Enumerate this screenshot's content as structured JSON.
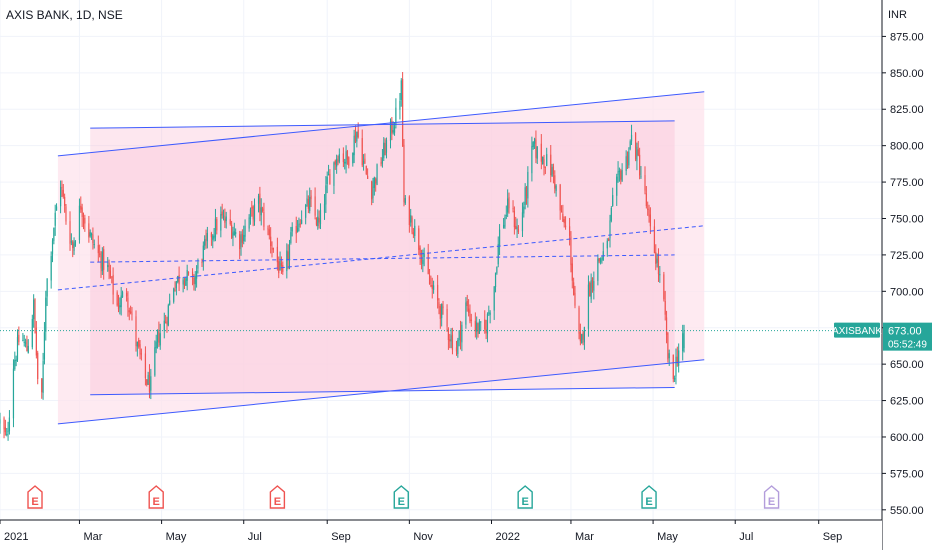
{
  "symbol_title": "AXIS BANK, 1D, NSE",
  "chart_data": {
    "type": "candlestick",
    "title": "AXIS BANK, 1D, NSE",
    "y_unit": "INR",
    "y_ticks": [
      "875.00",
      "850.00",
      "825.00",
      "800.00",
      "775.00",
      "750.00",
      "725.00",
      "700.00",
      "675.00",
      "650.00",
      "625.00",
      "600.00",
      "575.00",
      "550.00"
    ],
    "ylim": [
      543,
      900
    ],
    "x_ticks": [
      "2021",
      "Mar",
      "May",
      "Jul",
      "Sep",
      "Nov",
      "2022",
      "Mar",
      "May",
      "Jul",
      "Sep"
    ],
    "xlim": [
      "2021-01-01",
      "2022-10-18"
    ],
    "last_price_label": "AXISBANK",
    "last_price": "673.00",
    "countdown": "05:52:49",
    "price_path": [
      [
        "2021-01-01",
        610
      ],
      [
        "2021-01-06",
        598
      ],
      [
        "2021-01-11",
        650
      ],
      [
        "2021-01-16",
        670
      ],
      [
        "2021-01-21",
        660
      ],
      [
        "2021-01-26",
        690
      ],
      [
        "2021-01-29",
        640
      ],
      [
        "2021-02-01",
        625
      ],
      [
        "2021-02-04",
        700
      ],
      [
        "2021-02-10",
        745
      ],
      [
        "2021-02-15",
        775
      ],
      [
        "2021-02-19",
        750
      ],
      [
        "2021-02-24",
        730
      ],
      [
        "2021-03-02",
        760
      ],
      [
        "2021-03-08",
        740
      ],
      [
        "2021-03-15",
        725
      ],
      [
        "2021-03-22",
        715
      ],
      [
        "2021-03-29",
        690
      ],
      [
        "2021-04-05",
        700
      ],
      [
        "2021-04-12",
        665
      ],
      [
        "2021-04-19",
        640
      ],
      [
        "2021-04-23",
        635
      ],
      [
        "2021-04-28",
        668
      ],
      [
        "2021-05-04",
        680
      ],
      [
        "2021-05-10",
        705
      ],
      [
        "2021-05-17",
        712
      ],
      [
        "2021-05-24",
        705
      ],
      [
        "2021-05-31",
        725
      ],
      [
        "2021-06-07",
        740
      ],
      [
        "2021-06-14",
        750
      ],
      [
        "2021-06-21",
        745
      ],
      [
        "2021-06-28",
        735
      ],
      [
        "2021-07-05",
        750
      ],
      [
        "2021-07-12",
        760
      ],
      [
        "2021-07-19",
        740
      ],
      [
        "2021-07-26",
        720
      ],
      [
        "2021-07-30",
        708
      ],
      [
        "2021-08-05",
        735
      ],
      [
        "2021-08-12",
        752
      ],
      [
        "2021-08-19",
        760
      ],
      [
        "2021-08-26",
        745
      ],
      [
        "2021-09-02",
        778
      ],
      [
        "2021-09-09",
        795
      ],
      [
        "2021-09-16",
        790
      ],
      [
        "2021-09-23",
        810
      ],
      [
        "2021-09-30",
        780
      ],
      [
        "2021-10-04",
        770
      ],
      [
        "2021-10-11",
        790
      ],
      [
        "2021-10-18",
        810
      ],
      [
        "2021-10-22",
        820
      ],
      [
        "2021-10-26",
        840
      ],
      [
        "2021-10-28",
        760
      ],
      [
        "2021-11-02",
        750
      ],
      [
        "2021-11-09",
        730
      ],
      [
        "2021-11-16",
        705
      ],
      [
        "2021-11-23",
        690
      ],
      [
        "2021-11-30",
        672
      ],
      [
        "2021-12-06",
        660
      ],
      [
        "2021-12-13",
        690
      ],
      [
        "2021-12-20",
        675
      ],
      [
        "2021-12-27",
        672
      ],
      [
        "2022-01-03",
        705
      ],
      [
        "2022-01-07",
        740
      ],
      [
        "2022-01-14",
        760
      ],
      [
        "2022-01-21",
        740
      ],
      [
        "2022-01-27",
        770
      ],
      [
        "2022-02-01",
        800
      ],
      [
        "2022-02-04",
        795
      ],
      [
        "2022-02-10",
        790
      ],
      [
        "2022-02-16",
        780
      ],
      [
        "2022-02-22",
        750
      ],
      [
        "2022-02-28",
        735
      ],
      [
        "2022-03-04",
        685
      ],
      [
        "2022-03-08",
        660
      ],
      [
        "2022-03-14",
        700
      ],
      [
        "2022-03-21",
        720
      ],
      [
        "2022-03-28",
        730
      ],
      [
        "2022-04-01",
        760
      ],
      [
        "2022-04-06",
        780
      ],
      [
        "2022-04-11",
        790
      ],
      [
        "2022-04-15",
        805
      ],
      [
        "2022-04-20",
        790
      ],
      [
        "2022-04-25",
        765
      ],
      [
        "2022-04-29",
        740
      ],
      [
        "2022-05-04",
        720
      ],
      [
        "2022-05-09",
        690
      ],
      [
        "2022-05-12",
        655
      ],
      [
        "2022-05-16",
        640
      ],
      [
        "2022-05-18",
        652
      ],
      [
        "2022-05-20",
        660
      ],
      [
        "2022-05-24",
        673
      ]
    ],
    "channels": [
      {
        "name": "outer-channel-upper",
        "from": [
          "2021-02-13",
          793
        ],
        "to": [
          "2022-06-08",
          837
        ]
      },
      {
        "name": "outer-channel-lower",
        "from": [
          "2021-02-13",
          609
        ],
        "to": [
          "2022-06-08",
          653
        ]
      },
      {
        "name": "inner-channel-upper",
        "from": [
          "2021-03-09",
          812
        ],
        "to": [
          "2022-05-17",
          817
        ]
      },
      {
        "name": "inner-channel-lower",
        "from": [
          "2021-03-09",
          629
        ],
        "to": [
          "2022-05-17",
          634
        ]
      },
      {
        "name": "midline-outer",
        "from": [
          "2021-02-13",
          701
        ],
        "to": [
          "2022-06-08",
          745
        ]
      },
      {
        "name": "midline-inner",
        "from": [
          "2021-03-09",
          720
        ],
        "to": [
          "2022-05-17",
          725
        ]
      }
    ],
    "earnings_markers": [
      {
        "date": "2021-01-27",
        "type": "past-miss",
        "label": "E"
      },
      {
        "date": "2021-04-27",
        "type": "past-miss",
        "label": "E"
      },
      {
        "date": "2021-07-26",
        "type": "past-miss",
        "label": "E"
      },
      {
        "date": "2021-10-26",
        "type": "past-beat",
        "label": "E"
      },
      {
        "date": "2022-01-26",
        "type": "past-beat",
        "label": "E"
      },
      {
        "date": "2022-04-28",
        "type": "past-beat",
        "label": "E"
      },
      {
        "date": "2022-07-28",
        "type": "upcoming",
        "label": "E"
      }
    ],
    "colors": {
      "up": "#26a69a",
      "down": "#ef5350",
      "channel_line": "#3d5afe",
      "channel_fill": "#fde3ec",
      "last_price_bg": "#26a69a",
      "earnings_miss": "#ef5350",
      "earnings_beat": "#26a69a",
      "earnings_upcoming": "#b39ddb"
    }
  }
}
